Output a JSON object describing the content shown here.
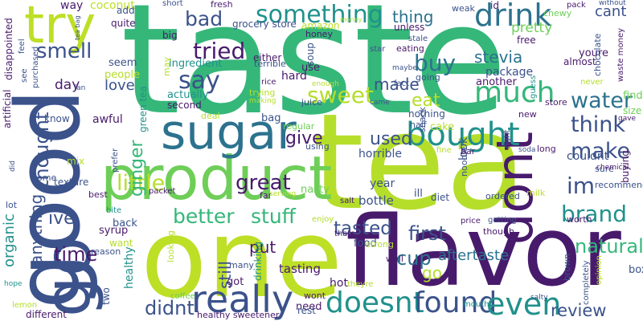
{
  "word_cloud": {
    "background": "#ffffff",
    "palette": {
      "dark_purple": "#481a6c",
      "indigo": "#3b528b",
      "steel_blue": "#2c728e",
      "teal": "#21918c",
      "green": "#35b779",
      "light_green": "#6ece58",
      "yellow_green": "#bddf26",
      "lime": "#b5de2b",
      "deep_purple": "#440154"
    },
    "words": [
      {
        "text": "taste",
        "color": "#35b779"
      },
      {
        "text": "tea",
        "color": "#b5de2b"
      },
      {
        "text": "good",
        "color": "#3b528b"
      },
      {
        "text": "one",
        "color": "#bddf26"
      },
      {
        "text": "flavor",
        "color": "#481a6c"
      },
      {
        "text": "go",
        "color": "#3b528b"
      },
      {
        "text": "product",
        "color": "#6ece58"
      },
      {
        "text": "sugar",
        "color": "#2c728e"
      },
      {
        "text": "dont",
        "color": "#481a6c"
      },
      {
        "text": "try",
        "color": "#bddf26"
      },
      {
        "text": "really",
        "color": "#3b528b"
      },
      {
        "text": "doesnt",
        "color": "#21918c"
      },
      {
        "text": "found",
        "color": "#3b528b"
      },
      {
        "text": "bought",
        "color": "#21918c"
      },
      {
        "text": "even",
        "color": "#21918c"
      },
      {
        "text": "drink",
        "color": "#2c728e"
      },
      {
        "text": "something",
        "color": "#21918c"
      },
      {
        "text": "much",
        "color": "#35b779"
      },
      {
        "text": "water",
        "color": "#2c728e"
      },
      {
        "text": "make",
        "color": "#3b528b"
      },
      {
        "text": "think",
        "color": "#3b528b"
      },
      {
        "text": "im",
        "color": "#3b528b"
      },
      {
        "text": "brand",
        "color": "#21918c"
      },
      {
        "text": "better",
        "color": "#35b779"
      },
      {
        "text": "stuff",
        "color": "#35b779"
      },
      {
        "text": "little",
        "color": "#b5de2b"
      },
      {
        "text": "great",
        "color": "#481a6c"
      },
      {
        "text": "thought",
        "color": "#3b528b"
      },
      {
        "text": "say",
        "color": "#3b528b"
      },
      {
        "text": "bad",
        "color": "#3b528b"
      },
      {
        "text": "smell",
        "color": "#3b528b"
      },
      {
        "text": "tried",
        "color": "#481a6c"
      },
      {
        "text": "sweet",
        "color": "#b5de2b"
      },
      {
        "text": "buy",
        "color": "#2c728e"
      },
      {
        "text": "eat",
        "color": "#b5de2b"
      },
      {
        "text": "tasted",
        "color": "#3b528b"
      },
      {
        "text": "first",
        "color": "#3b528b"
      },
      {
        "text": "cup",
        "color": "#2c728e"
      },
      {
        "text": "natural",
        "color": "#35b779"
      },
      {
        "text": "review",
        "color": "#3b528b"
      },
      {
        "text": "didnt",
        "color": "#3b528b"
      },
      {
        "text": "time",
        "color": "#481a6c"
      },
      {
        "text": "anything",
        "color": "#3b528b"
      },
      {
        "text": "ive",
        "color": "#3b528b"
      },
      {
        "text": "ginger",
        "color": "#35b779"
      },
      {
        "text": "used",
        "color": "#3b528b"
      },
      {
        "text": "give",
        "color": "#481a6c"
      },
      {
        "text": "made",
        "color": "#3b528b"
      },
      {
        "text": "stevia",
        "color": "#2c728e"
      },
      {
        "text": "thing",
        "color": "#2c728e"
      },
      {
        "text": "still",
        "color": "#3b528b"
      },
      {
        "text": "go",
        "color": "#b5de2b"
      },
      {
        "text": "love",
        "color": "#3b528b"
      },
      {
        "text": "cant",
        "color": "#3b528b"
      },
      {
        "text": "aftertaste",
        "color": "#2c728e"
      },
      {
        "text": "organic",
        "color": "#21918c"
      },
      {
        "text": "put",
        "color": "#481a6c"
      },
      {
        "text": "tasting",
        "color": "#481a6c"
      },
      {
        "text": "hot",
        "color": "#481a6c"
      },
      {
        "text": "box",
        "color": "#3b528b"
      },
      {
        "text": "way",
        "color": "#481a6c"
      },
      {
        "text": "coconut",
        "color": "#bddf26"
      },
      {
        "text": "add",
        "color": "#3b528b"
      },
      {
        "text": "seem",
        "color": "#3b528b"
      },
      {
        "text": "people",
        "color": "#b5de2b"
      },
      {
        "text": "day",
        "color": "#481a6c"
      },
      {
        "text": "know",
        "color": "#3b528b"
      },
      {
        "text": "awful",
        "color": "#481a6c"
      },
      {
        "text": "package",
        "color": "#3b528b"
      },
      {
        "text": "another",
        "color": "#481a6c"
      },
      {
        "text": "going",
        "color": "#3b528b"
      },
      {
        "text": "couldnt",
        "color": "#3b528b"
      },
      {
        "text": "find",
        "color": "#6ece58"
      },
      {
        "text": "size",
        "color": "#6ece58"
      },
      {
        "text": "cake",
        "color": "#b5de2b"
      },
      {
        "text": "nothing",
        "color": "#3b528b"
      },
      {
        "text": "horrible",
        "color": "#3b528b"
      },
      {
        "text": "year",
        "color": "#3b528b"
      },
      {
        "text": "look",
        "color": "#3b528b"
      },
      {
        "text": "bottle",
        "color": "#3b528b"
      },
      {
        "text": "nasty",
        "color": "#6ece58"
      },
      {
        "text": "ordered",
        "color": "#3b528b"
      },
      {
        "text": "diet",
        "color": "#3b528b"
      },
      {
        "text": "ill",
        "color": "#3b528b"
      },
      {
        "text": "back",
        "color": "#3b528b"
      },
      {
        "text": "syrup",
        "color": "#481a6c"
      },
      {
        "text": "want",
        "color": "#b5de2b"
      },
      {
        "text": "texture",
        "color": "#3b528b"
      },
      {
        "text": "mix",
        "color": "#b5de2b"
      },
      {
        "text": "best",
        "color": "#481a6c"
      },
      {
        "text": "come",
        "color": "#3b528b"
      },
      {
        "text": "lot",
        "color": "#3b528b"
      },
      {
        "text": "bite",
        "color": "#21918c"
      },
      {
        "text": "healthy",
        "color": "#21918c"
      },
      {
        "text": "reason",
        "color": "#3b528b"
      },
      {
        "text": "many",
        "color": "#3b528b"
      },
      {
        "text": "got",
        "color": "#481a6c"
      },
      {
        "text": "drinking",
        "color": "#21918c"
      },
      {
        "text": "need",
        "color": "#481a6c"
      },
      {
        "text": "different",
        "color": "#481a6c"
      },
      {
        "text": "lemon",
        "color": "#b5de2b"
      },
      {
        "text": "hope",
        "color": "#21918c"
      },
      {
        "text": "two",
        "color": "#3b528b"
      },
      {
        "text": "ingredient",
        "color": "#21918c"
      },
      {
        "text": "actually",
        "color": "#21918c"
      },
      {
        "text": "second",
        "color": "#481a6c"
      },
      {
        "text": "either",
        "color": "#481a6c"
      },
      {
        "text": "terrible",
        "color": "#3b528b"
      },
      {
        "text": "bag",
        "color": "#3b528b"
      },
      {
        "text": "deal",
        "color": "#b5de2b"
      },
      {
        "text": "regular",
        "color": "#6ece58"
      },
      {
        "text": "using",
        "color": "#3b528b"
      },
      {
        "text": "green tea",
        "color": "#21918c"
      },
      {
        "text": "soup",
        "color": "#3b528b"
      },
      {
        "text": "use",
        "color": "#481a6c"
      },
      {
        "text": "hard",
        "color": "#481a6c"
      },
      {
        "text": "juice",
        "color": "#3b528b"
      },
      {
        "text": "trying",
        "color": "#b5de2b"
      },
      {
        "text": "making",
        "color": "#b5de2b"
      },
      {
        "text": "rice",
        "color": "#481a6c"
      },
      {
        "text": "amazon",
        "color": "#bddf26"
      },
      {
        "text": "honey",
        "color": "#481a6c"
      },
      {
        "text": "unless",
        "color": "#481a6c"
      },
      {
        "text": "eating",
        "color": "#481a6c"
      },
      {
        "text": "maybe",
        "color": "#3b528b"
      },
      {
        "text": "fact",
        "color": "#3b528b"
      },
      {
        "text": "came",
        "color": "#3b528b"
      },
      {
        "text": "star",
        "color": "#3b528b"
      },
      {
        "text": "pretty",
        "color": "#6ece58"
      },
      {
        "text": "free",
        "color": "#481a6c"
      },
      {
        "text": "youre",
        "color": "#481a6c"
      },
      {
        "text": "almost",
        "color": "#481a6c"
      },
      {
        "text": "store",
        "color": "#481a6c"
      },
      {
        "text": "new",
        "color": "#481a6c"
      },
      {
        "text": "guess",
        "color": "#21918c"
      },
      {
        "text": "chocolate",
        "color": "#3b528b"
      },
      {
        "text": "waste money",
        "color": "#481a6c"
      },
      {
        "text": "never",
        "color": "#b5de2b"
      },
      {
        "text": "chewy",
        "color": "#6ece58"
      },
      {
        "text": "id",
        "color": "#481a6c"
      },
      {
        "text": "without",
        "color": "#3b528b"
      },
      {
        "text": "weak",
        "color": "#3b528b"
      },
      {
        "text": "pack",
        "color": "#481a6c"
      },
      {
        "text": "right",
        "color": "#3b528b"
      },
      {
        "text": "soda",
        "color": "#3b528b"
      },
      {
        "text": "long",
        "color": "#481a6c"
      },
      {
        "text": "sure",
        "color": "#3b528b"
      },
      {
        "text": "recommend",
        "color": "#3b528b"
      },
      {
        "text": "buying",
        "color": "#481a6c"
      },
      {
        "text": "gave",
        "color": "#481a6c"
      },
      {
        "text": "chemical",
        "color": "#481a6c"
      },
      {
        "text": "worth",
        "color": "#481a6c"
      },
      {
        "text": "milk",
        "color": "#bddf26"
      },
      {
        "text": "getting",
        "color": "#3b528b"
      },
      {
        "text": "price",
        "color": "#481a6c"
      },
      {
        "text": "though",
        "color": "#481a6c"
      },
      {
        "text": "opinion",
        "color": "#b5de2b"
      },
      {
        "text": "completely",
        "color": "#3b528b"
      },
      {
        "text": "brown",
        "color": "#3b528b"
      },
      {
        "text": "salty",
        "color": "#3b528b"
      },
      {
        "text": "mouth",
        "color": "#21918c"
      },
      {
        "text": "well",
        "color": "#481a6c"
      },
      {
        "text": "food",
        "color": "#3b528b"
      },
      {
        "text": "strong",
        "color": "#b5de2b"
      },
      {
        "text": "thats",
        "color": "#481a6c"
      },
      {
        "text": "theyre",
        "color": "#b5de2b"
      },
      {
        "text": "wont",
        "color": "#481a6c"
      },
      {
        "text": "rest",
        "color": "#3b528b"
      },
      {
        "text": "healthy sweetener",
        "color": "#481a6c"
      },
      {
        "text": "coffee",
        "color": "#6ece58"
      },
      {
        "text": "looking",
        "color": "#b5de2b"
      },
      {
        "text": "enjoy",
        "color": "#b5de2b"
      },
      {
        "text": "salt",
        "color": "#481a6c"
      },
      {
        "text": "far",
        "color": "#481a6c"
      },
      {
        "text": "serving",
        "color": "#b5de2b"
      },
      {
        "text": "packet",
        "color": "#481a6c"
      },
      {
        "text": "prefer",
        "color": "#3b528b"
      },
      {
        "text": "noodle",
        "color": "#3b528b"
      },
      {
        "text": "half",
        "color": "#3b528b"
      },
      {
        "text": "fine",
        "color": "#b5de2b"
      },
      {
        "text": "bar",
        "color": "#481a6c"
      },
      {
        "text": "snack",
        "color": "#3b528b"
      },
      {
        "text": "stale",
        "color": "#3b528b"
      },
      {
        "text": "short",
        "color": "#3b528b"
      },
      {
        "text": "fresh",
        "color": "#481a6c"
      },
      {
        "text": "big",
        "color": "#481a6c"
      },
      {
        "text": "quite",
        "color": "#481a6c"
      },
      {
        "text": "grocery store",
        "color": "#3b528b"
      },
      {
        "text": "money",
        "color": "#b5de2b"
      },
      {
        "text": "may",
        "color": "#b5de2b"
      },
      {
        "text": "enough",
        "color": "#b5de2b"
      },
      {
        "text": "fan",
        "color": "#3b528b"
      },
      {
        "text": "see",
        "color": "#3b528b"
      },
      {
        "text": "purchased",
        "color": "#3b528b"
      },
      {
        "text": "disappointed",
        "color": "#481a6c"
      },
      {
        "text": "feel",
        "color": "#3b528b"
      },
      {
        "text": "tea bag",
        "color": "#3b528b"
      },
      {
        "text": "artificial",
        "color": "#481a6c"
      },
      {
        "text": "did",
        "color": "#3b528b"
      }
    ]
  }
}
